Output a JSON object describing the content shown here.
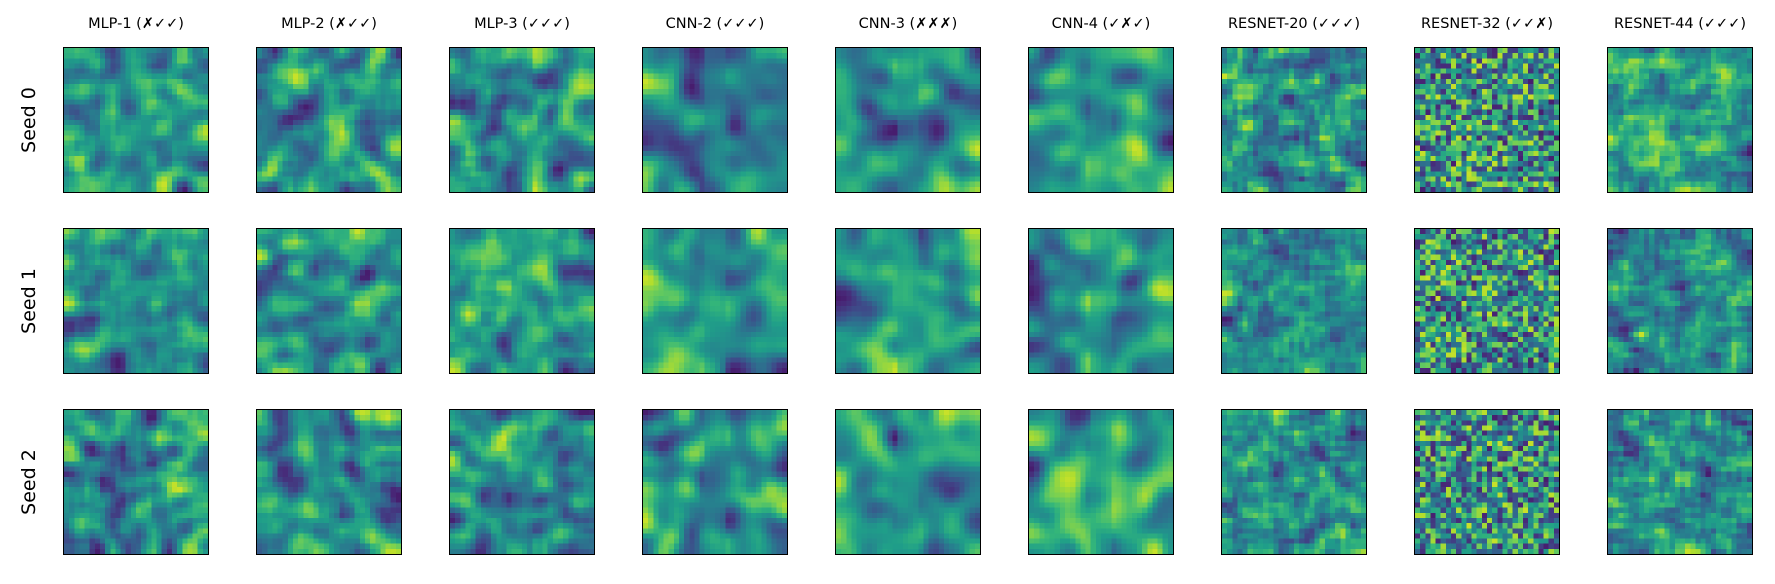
{
  "chart_data": {
    "type": "heatmap",
    "colormap": "viridis",
    "grid": "3 rows x 9 columns",
    "column_titles": [
      "MLP-1 (✗✓✓)",
      "MLP-2 (✗✓✓)",
      "MLP-3 (✓✓✓)",
      "CNN-2 (✓✓✓)",
      "CNN-3 (✗✗✗)",
      "CNN-4 (✓✗✓)",
      "RESNET-20 (✓✓✓)",
      "RESNET-32 (✓✓✗)",
      "RESNET-44 (✓✓✓)"
    ],
    "row_labels": [
      "Seed 0",
      "Seed 1",
      "Seed 2"
    ],
    "panel_resolution": [
      28,
      28
    ],
    "axes": "no ticks, framed",
    "colorbar": false
  }
}
